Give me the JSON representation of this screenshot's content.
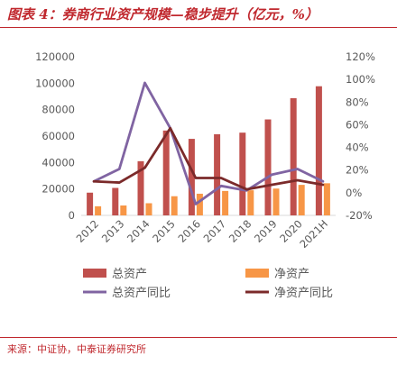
{
  "title": "图表 4：券商行业资产规模—稳步提升（亿元，%）",
  "source": "来源：中证协，中泰证券研究所",
  "chart_data": {
    "type": "bar",
    "title": "",
    "xlabel": "",
    "ylabel": "",
    "categories": [
      "2012",
      "2013",
      "2014",
      "2015",
      "2016",
      "2017",
      "2018",
      "2019",
      "2020",
      "2021H"
    ],
    "ylim": [
      0,
      120000
    ],
    "y_ticks": [
      "0",
      "20000",
      "40000",
      "60000",
      "80000",
      "100000",
      "120000"
    ],
    "y2lim": [
      -20,
      120
    ],
    "y2_ticks": [
      "-20%",
      "0%",
      "20%",
      "40%",
      "60%",
      "80%",
      "100%",
      "120%"
    ],
    "grid": false,
    "legend_position": "bottom",
    "series": [
      {
        "name": "总资产",
        "type": "bar",
        "axis": "left",
        "color": "#c0504d",
        "values": [
          17200,
          20800,
          41000,
          64200,
          57900,
          61400,
          62600,
          72600,
          88700,
          97700
        ]
      },
      {
        "name": "净资产",
        "type": "bar",
        "axis": "left",
        "color": "#f79646",
        "values": [
          6900,
          7500,
          9200,
          14500,
          16400,
          18500,
          19000,
          20300,
          23100,
          24300
        ]
      },
      {
        "name": "总资产同比",
        "type": "line",
        "axis": "right",
        "color": "#8064a2",
        "values": [
          10,
          21,
          97,
          57,
          -10,
          6,
          2,
          16,
          21,
          10
        ]
      },
      {
        "name": "净资产同比",
        "type": "line",
        "axis": "right",
        "color": "#7b2a2a",
        "values": [
          10,
          9,
          22,
          57,
          13,
          13,
          3,
          7,
          11,
          7
        ]
      }
    ]
  }
}
